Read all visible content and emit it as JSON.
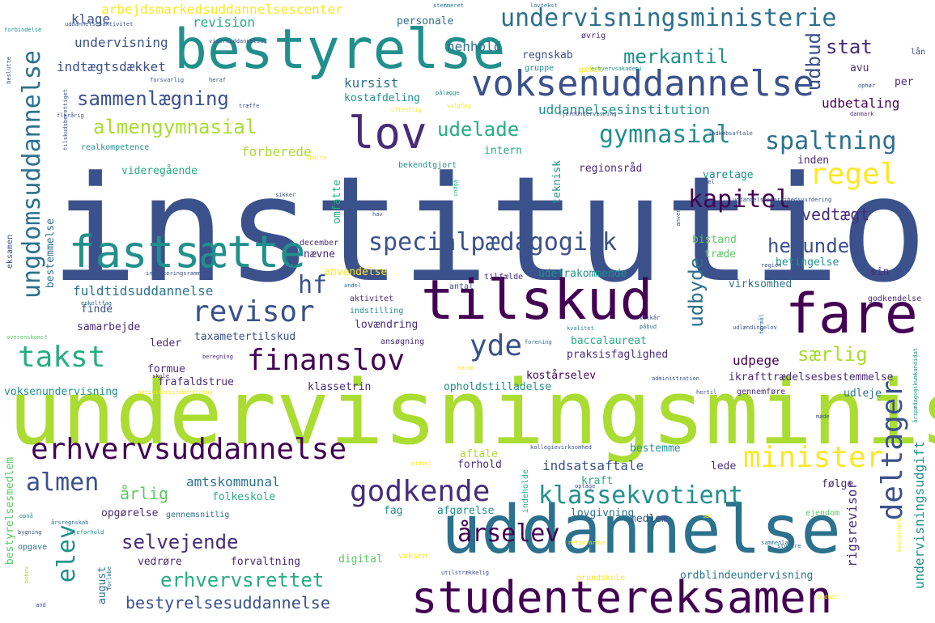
{
  "words": {
    "institution": "institution",
    "undervisningsminister": "undervisningsminister",
    "uddannelse": "uddannelse",
    "bestyrelse": "bestyrelse",
    "tilskud": "tilskud",
    "fare": "fare",
    "studentereksamen": "studentereksamen",
    "lov": "lov",
    "fastsaette": "fastsætte",
    "voksenuddannelse": "voksenuddannelse",
    "undervisningsministerie": "undervisningsministerie",
    "erhvervsuddannelse": "erhvervsuddannelse",
    "godkende": "godkende",
    "finanslov": "finanslov",
    "revisor": "revisor",
    "regel": "regel",
    "minister": "minister",
    "specialpaedagogisk": "specialpædagogisk",
    "takst": "takst",
    "yde": "yde",
    "arselev": "årselev",
    "klassekvotient": "klassekvotient",
    "gymnasial": "gymnasial",
    "spaltning": "spaltning",
    "kapitel": "kapitel",
    "hf": "hf",
    "almen": "almen",
    "merkantil": "merkantil",
    "stat": "stat",
    "udelade": "udelade",
    "almengymnasial": "almengymnasial",
    "sammenlaegning": "sammenlægning",
    "selvejende": "selvejende",
    "erhvervsrettet": "erhvervsrettet",
    "bestyrelsesuddannelse": "bestyrelsesuddannelse",
    "herunder": "herunder",
    "saerlig": "særlig",
    "vedtaegt": "vedtægt",
    "uddannelsesinstitution": "uddannelsesinstitution",
    "fuldtidsuddannelse": "fuldtidsuddannelse",
    "indsatsaftale": "indsatsaftale",
    "arlig": "årlig",
    "amtskommunal": "amtskommunal",
    "arbejdsmarkedsuddannelsescenter": "arbejdsmarkedsuddannelsescenter",
    "undervisning": "undervisning",
    "indtaegtsdaekket": "indtægtsdækket",
    "klage": "klage",
    "revision": "revision",
    "henhold": "henhold",
    "regnskab": "regnskab",
    "personale": "personale",
    "kursist": "kursist",
    "kostafdeling": "kostafdeling",
    "udbetaling": "udbetaling",
    "per": "per",
    "avu": "avu",
    "forberede": "forberede",
    "intern": "intern",
    "videregaende": "videregående",
    "regionsrad": "regionsråd",
    "inden": "inden",
    "varetage": "varetage",
    "omfatte": "omfatte",
    "teknisk": "teknisk",
    "bistand": "bistand",
    "traede": "træde",
    "betingelse": "betingelse",
    "sin": "sin",
    "anvendelse": "anvendelse",
    "naevne": "nævne",
    "udefrakommende": "udefrakommende",
    "virksomhed": "virksomhed",
    "finde": "finde",
    "samarbejde": "samarbejde",
    "leder": "leder",
    "taxametertilskud": "taxametertilskud",
    "lovaendring": "lovændring",
    "baccalaureat": "baccalaureat",
    "praksisfaglighed": "praksisfaglighed",
    "udpege": "udpege",
    "formue": "formue",
    "frafaldstrue": "frafaldstrue",
    "kostarselev": "kostårselev",
    "klassetrin": "klassetrin",
    "opholdstilladelse": "opholdstilladelse",
    "ikrafttraedelsesbestemmelse": "ikrafttrædelsesbestemmelse",
    "godkendelse": "godkendelse",
    "udleje": "udleje",
    "gennemfoere": "gennemføre",
    "deltager": "deltager",
    "udbud": "udbud",
    "udbyde": "udbyde",
    "ungdomsuddannelse": "ungdomsuddannelse",
    "elev": "elev",
    "rigsrevisor": "rigsrevisor",
    "undervisningsudgift": "undervisningsudgift",
    "bestyrelsesmedlem": "bestyrelsesmedlem",
    "voksenundervisning": "voksenundervisning",
    "folkeskole": "folkeskole",
    "opgoerelse": "opgørelse",
    "afgoerelse": "afgørelse",
    "medlem": "medlem",
    "lede": "lede",
    "kraft": "kraft",
    "foelge": "følge",
    "aftale": "aftale",
    "bestemme": "bestemme",
    "forhold": "forhold",
    "fag": "fag",
    "lovgivning": "lovgivning",
    "ejendom": "ejendom",
    "gennemsnitlig": "gennemsnitlig",
    "vedroere": "vedrøre",
    "forvaltning": "forvaltning",
    "digital": "digital",
    "voksen": "voksen",
    "august": "august",
    "grundskole": "grundskole",
    "ordblindeundervisning": "ordblindeundervisning",
    "opgave": "opgave",
    "bygning": "bygning",
    "eksamen": "eksamen",
    "bestemmelse": "bestemmelse",
    "december": "december",
    "ib": "ib",
    "antal": "antal",
    "tilfaelde": "tilfælde",
    "aktivitet": "aktivitet",
    "ansoegning": "ansøgning",
    "realkompetence": "realkompetence",
    "tilskudsberegning": "tilskudsberegning",
    "investeringsramme": "investeringsramme",
    "enkeltfag": "enkeltfag",
    "andel": "andel",
    "indstilling": "indstilling",
    "overenskomst": "overenskomst",
    "hav": "hav",
    "sikker": "sikker",
    "forbindelse": "forbindelse",
    "erhvervsakademi": "erhvervsakademi",
    "sammenlagt": "sammenlagt",
    "budget": "budget",
    "koordinere": "koordinere",
    "studere": "studere",
    "bekendtgjort": "bekendtgjort",
    "danmark": "danmark",
    "fjernundervisning": "fjernundervisning",
    "indkobsaftale": "indkøbsaftale",
    "oevrig": "øvrig",
    "gruppe": "gruppe",
    "galde": "gælde",
    "lan": "lån",
    "beslutte": "beslutte",
    "stemmeret": "stemmeret",
    "lovtekst": "lovtekst",
    "spalte": "spalte",
    "videreuddannelse": "videreuddannelse",
    "flerarig": "flerårig",
    "forsvarlig": "forsvarlig",
    "heraf": "heraf",
    "traeffe": "træffe",
    "valgfag": "valgfag",
    "offentlig": "offentlig",
    "palaegge": "pålægge",
    "ophoer": "ophør",
    "region": "region",
    "kvalitet": "kvalitet",
    "pabud": "påbud",
    "formal": "formål",
    "vilkar": "vilkår",
    "forening": "forening",
    "udlandingelov": "udlændingelov",
    "herom": "herom",
    "administration": "administration",
    "hertil": "hertil",
    "skole": "skole",
    "beregning": "beregning",
    "aktivitetsindberetning": "aktivitetsindberetning",
    "kollegievirksomhed": "kollegievirksomhed",
    "middel": "middel",
    "optage": "optage",
    "nettoformue": "nettoformue",
    "indeholde": "indeholde",
    "mode": "møde",
    "saet": "sæt",
    "utilstraekkelig": "utilstrækkelig",
    "behov": "behov",
    "opna": "opnå",
    "arsregnskab": "årsregnskab",
    "lejeforhold": "lejeforhold",
    "and": "and",
    "tilskudsberettiget": "tilskudsberettiget",
    "arspaedagogikumkandidat": "årspædagogikumkandidat",
    "uddannelsesparathedsvurdering": "uddannelsesparathedsvurdering",
    "anvende": "anvende",
    "del": "del",
    "indga": "indgå",
    "uddannelsesaktivitet": "uddannelsesaktivitet",
    "forlobe": "forløbe"
  }
}
